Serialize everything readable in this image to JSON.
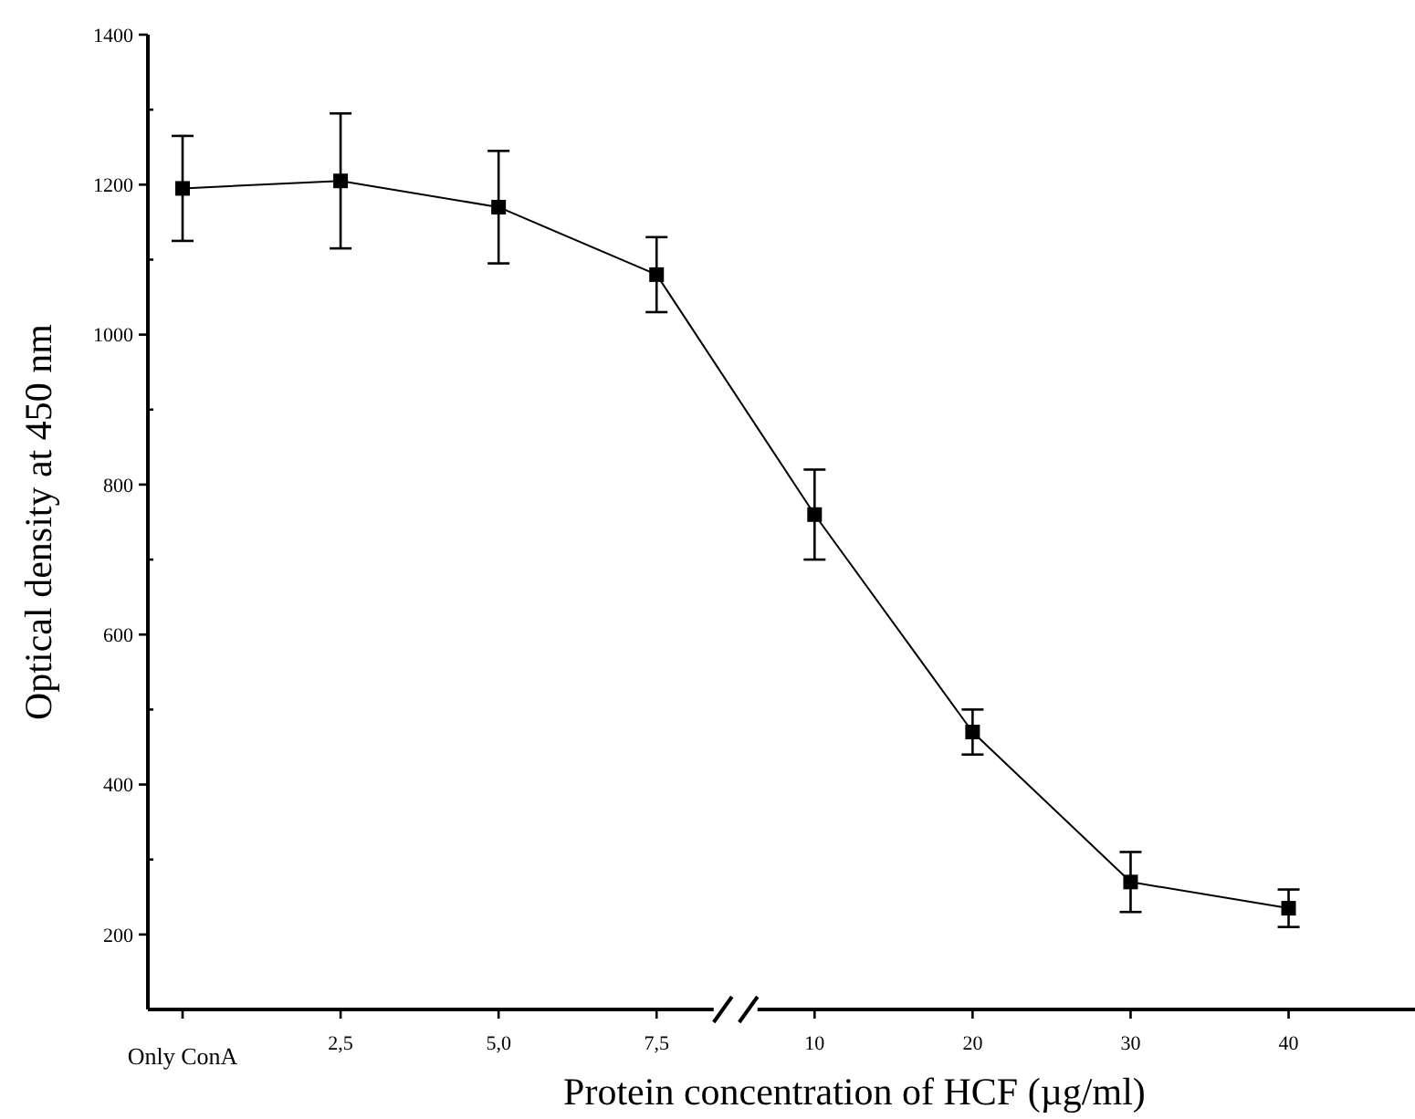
{
  "chart_data": {
    "type": "line",
    "xlabel": "Protein concentration of HCF (µg/ml)",
    "ylabel": "Optical density at 450 nm",
    "categories": [
      "Only ConA",
      "2,5",
      "5,0",
      "7,5",
      "10",
      "20",
      "30",
      "40"
    ],
    "values": [
      1195,
      1205,
      1170,
      1080,
      760,
      470,
      270,
      235
    ],
    "errors": [
      70,
      90,
      75,
      50,
      60,
      30,
      40,
      25
    ],
    "color": "#000000",
    "marker": "square",
    "line_style": "solid",
    "ylim": [
      100,
      1400
    ],
    "yticks": [
      200,
      {
        "value": 300,
        "label": null
      },
      400,
      {
        "value": 500,
        "label": null
      },
      600,
      {
        "value": 700,
        "label": null
      },
      800,
      {
        "value": 900,
        "label": null
      },
      1000,
      {
        "value": 1100,
        "label": null
      },
      1200,
      {
        "value": 1300,
        "label": null
      },
      1400
    ],
    "grid": false
  }
}
